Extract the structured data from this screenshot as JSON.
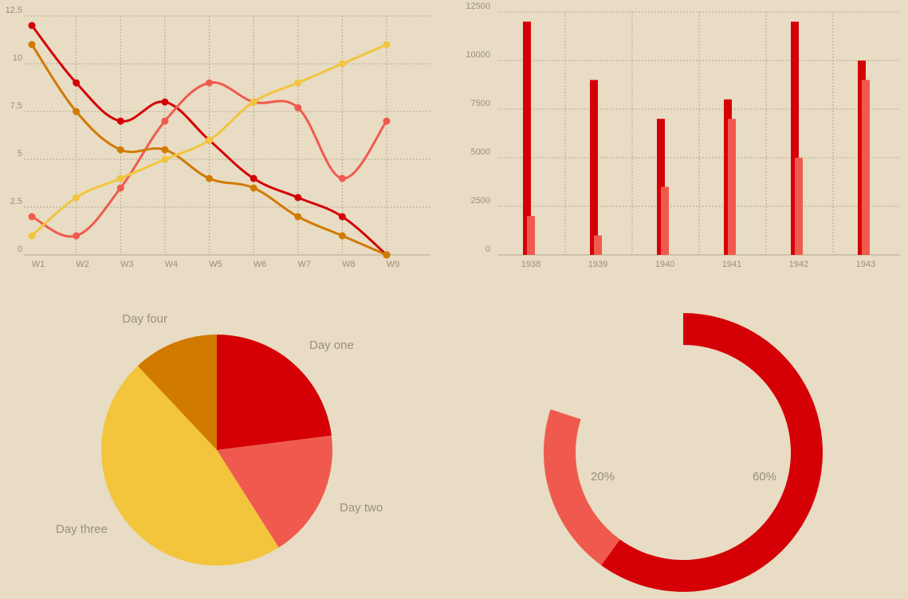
{
  "colors": {
    "background": "#e8dcc4",
    "red": "#d50005",
    "salmon": "#f05a4e",
    "orange": "#d17a00",
    "yellow": "#f2c53d",
    "grid": "#b5a990",
    "text": "#9a8f7a"
  },
  "chart_data": [
    {
      "type": "line",
      "x": [
        "W1",
        "W2",
        "W3",
        "W4",
        "W5",
        "W6",
        "W7",
        "W8",
        "W9"
      ],
      "yticks": [
        "0",
        "2.5",
        "5",
        "7.5",
        "10",
        "12.5"
      ],
      "ylim": [
        0,
        12.5
      ],
      "grid": true,
      "smooth": true,
      "series": [
        {
          "color": "#d50005",
          "values": [
            12,
            9,
            7,
            8,
            6,
            4,
            3,
            2,
            0
          ]
        },
        {
          "color": "#f05a4e",
          "values": [
            2,
            1,
            3.5,
            7,
            9,
            8,
            7.7,
            4,
            7
          ]
        },
        {
          "color": "#d17a00",
          "values": [
            11,
            7.5,
            5.5,
            5.5,
            4,
            3.5,
            2,
            1,
            0
          ]
        },
        {
          "color": "#f2c53d",
          "values": [
            1,
            3,
            4,
            5,
            6,
            8,
            9,
            10,
            11
          ]
        }
      ]
    },
    {
      "type": "bar",
      "categories": [
        "1938",
        "1939",
        "1940",
        "1941",
        "1942",
        "1943"
      ],
      "yticks": [
        "0",
        "2500",
        "5000",
        "7500",
        "10000",
        "12500"
      ],
      "ylim": [
        0,
        12500
      ],
      "grid": true,
      "series": [
        {
          "color": "#d50005",
          "values": [
            12000,
            9000,
            7000,
            8000,
            12000,
            10000
          ]
        },
        {
          "color": "#f05a4e",
          "values": [
            2000,
            1000,
            3500,
            7000,
            5000,
            9000
          ]
        }
      ]
    },
    {
      "type": "pie",
      "slices": [
        {
          "label": "Day one",
          "value": 23,
          "color": "#d50005"
        },
        {
          "label": "Day two",
          "value": 18,
          "color": "#f05a4e"
        },
        {
          "label": "Day three",
          "value": 47,
          "color": "#f2c53d"
        },
        {
          "label": "Day four",
          "value": 12,
          "color": "#d17a00"
        }
      ]
    },
    {
      "type": "pie",
      "donut": true,
      "slices": [
        {
          "label": "60%",
          "value": 60,
          "color": "#d50005"
        },
        {
          "label": "20%",
          "value": 20,
          "color": "#f05a4e"
        }
      ]
    }
  ]
}
